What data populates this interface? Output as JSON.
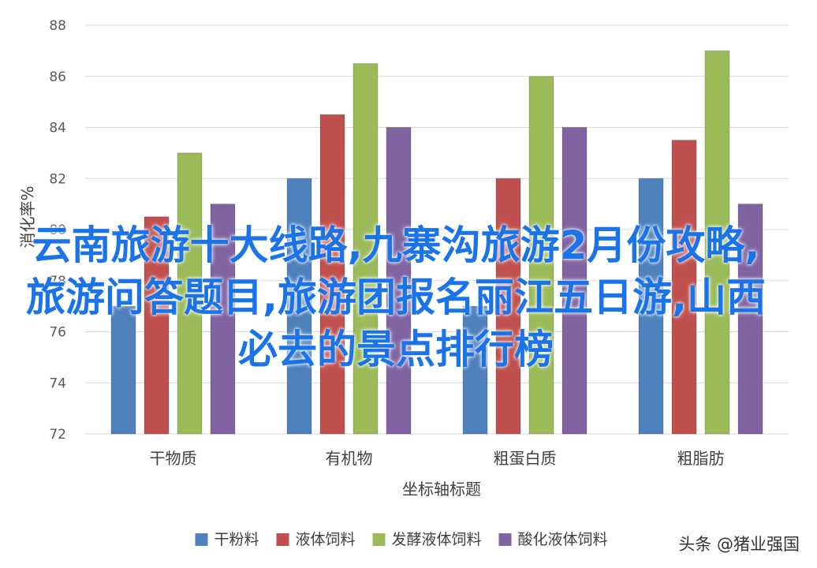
{
  "chart_data": {
    "type": "bar",
    "categories": [
      "干物质",
      "有机物",
      "粗蛋白质",
      "粗脂肪"
    ],
    "series": [
      {
        "name": "干粉料",
        "color": "#4f81bd",
        "values": [
          77,
          82,
          77,
          82
        ]
      },
      {
        "name": "液体饲料",
        "color": "#c0504d",
        "values": [
          80.5,
          84.5,
          82,
          83.5
        ]
      },
      {
        "name": "发酵液体饲料",
        "color": "#9bbb59",
        "values": [
          83,
          86.5,
          86,
          87
        ]
      },
      {
        "name": "酸化液体饲料",
        "color": "#8064a2",
        "values": [
          81,
          84,
          84,
          81
        ]
      }
    ],
    "xlabel": "坐标轴标题",
    "ylabel": "消化率%",
    "ylim": [
      72,
      88
    ],
    "yticks": [
      72,
      74,
      76,
      78,
      80,
      82,
      84,
      86,
      88
    ],
    "grid": true,
    "legend": "bottom"
  },
  "overlay_text": "云南旅游十大线路,九寨沟旅游2月份攻略,旅游问答题目,旅游团报名丽江五日游,山西必去的景点排行榜",
  "watermark": "头条 @猪业强国"
}
